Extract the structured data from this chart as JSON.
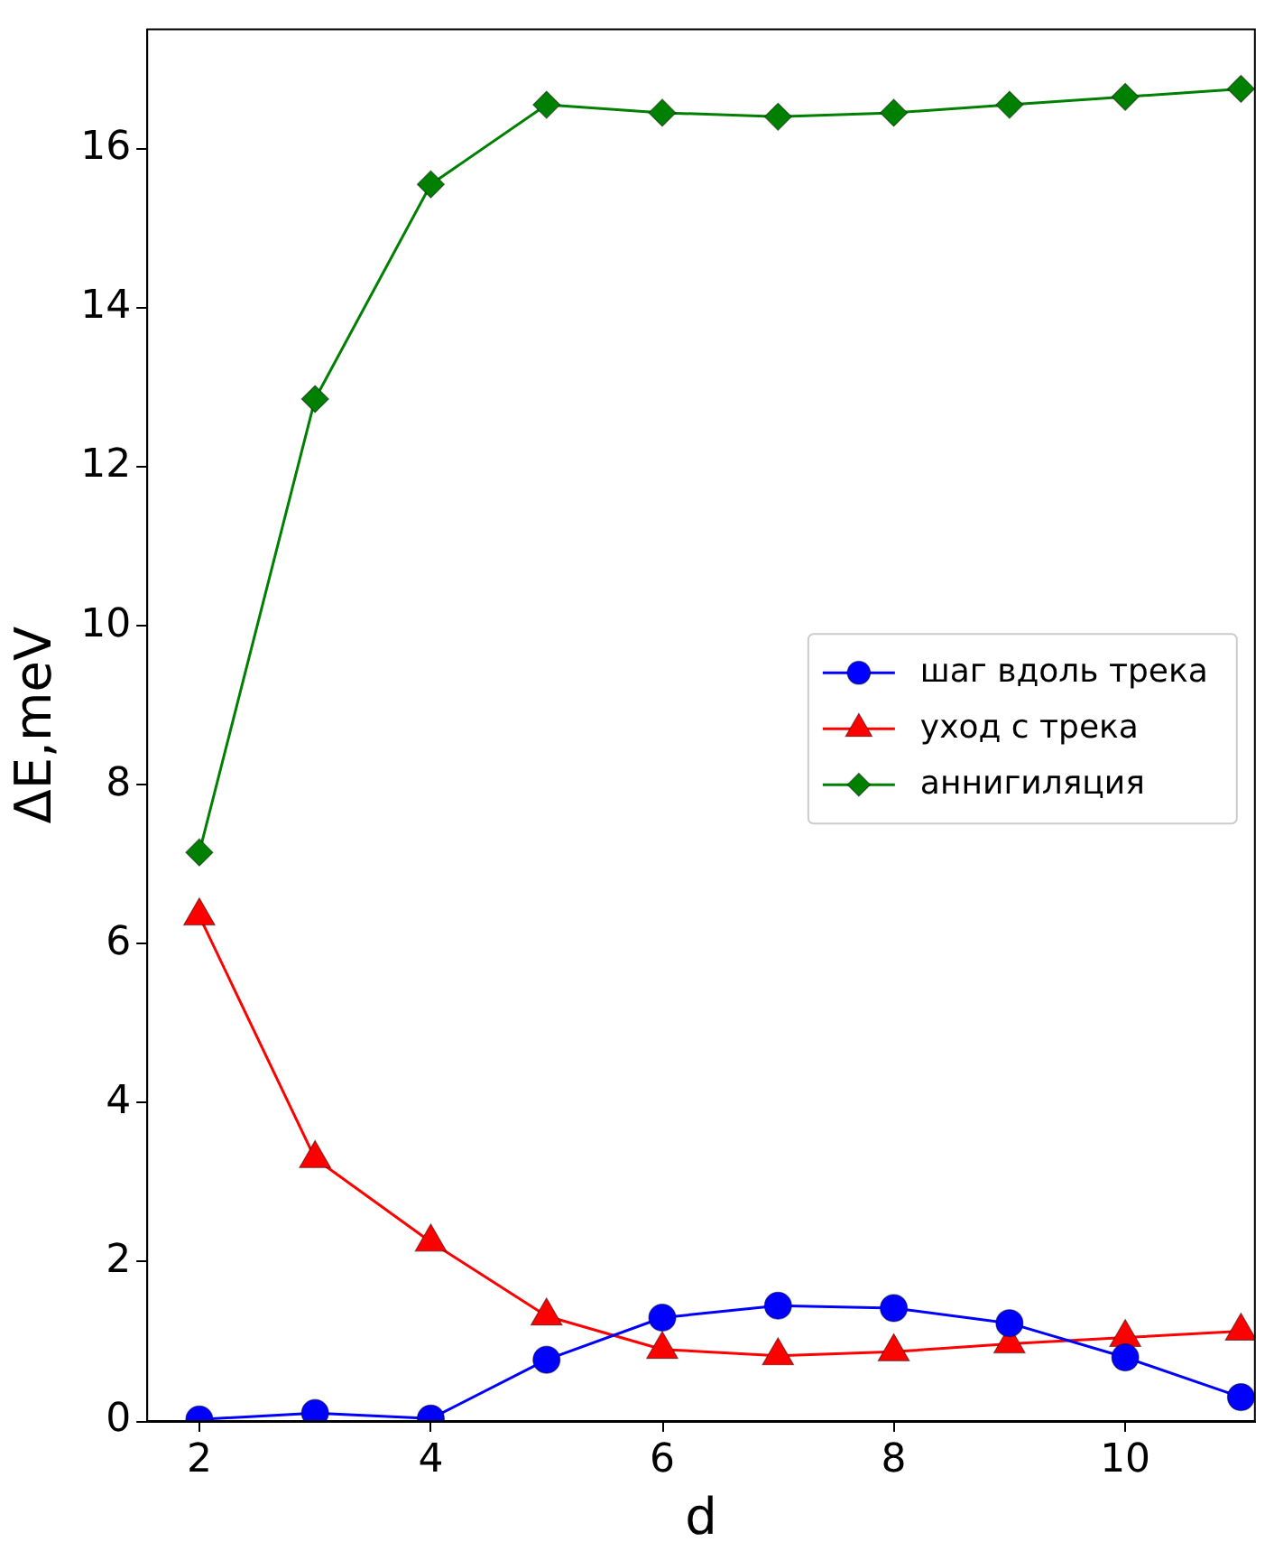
{
  "chart_data": {
    "type": "line",
    "xlabel": "d",
    "ylabel": "ΔE,meV",
    "x": [
      2,
      3,
      4,
      5,
      6,
      7,
      8,
      9,
      10,
      11
    ],
    "xlim": [
      1.55,
      11.12
    ],
    "xticks": [
      2,
      4,
      6,
      8,
      10
    ],
    "ylim": [
      0,
      17.5
    ],
    "yticks": [
      0,
      2,
      4,
      6,
      8,
      10,
      12,
      14,
      16
    ],
    "legend": "right",
    "grid": false,
    "series": [
      {
        "name": "шаг вдоль трека",
        "color": "#0000ff",
        "marker": "circle",
        "values": [
          0.02,
          0.1,
          0.03,
          0.77,
          1.3,
          1.45,
          1.42,
          1.23,
          0.8,
          0.3
        ]
      },
      {
        "name": "уход с трека",
        "color": "#ff0000",
        "marker": "triangle",
        "values": [
          6.35,
          3.3,
          2.25,
          1.32,
          0.9,
          0.82,
          0.87,
          0.97,
          1.05,
          1.13
        ]
      },
      {
        "name": "аннигиляция",
        "color": "#008000",
        "marker": "diamond",
        "values": [
          7.15,
          12.85,
          15.55,
          16.55,
          16.45,
          16.4,
          16.45,
          16.55,
          16.65,
          16.75
        ]
      }
    ]
  }
}
